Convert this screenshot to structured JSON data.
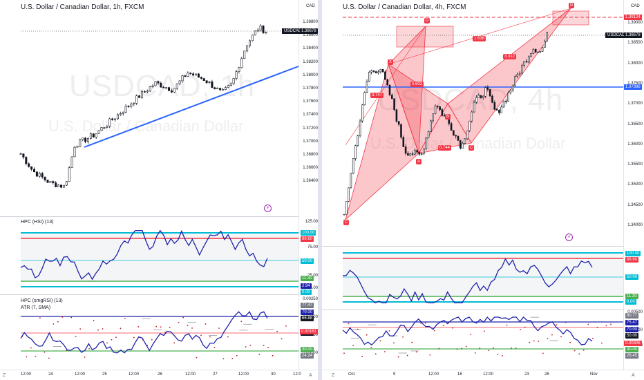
{
  "colors": {
    "up": "#131722",
    "down": "#131722",
    "trendline": "#2962ff",
    "indicator": "#1e22aa",
    "harmonic": "#f23645",
    "level_blue": "#00bcd4",
    "level_red": "#f23645",
    "level_green": "#4caf50"
  },
  "left": {
    "title": "U.S. Dollar / Canadian Dollar, 1h, FXCM",
    "watermark_symbol": "USDCAD, 1h",
    "watermark_name": "U.S. Dollar / Canadian Dollar",
    "currency": "CAD",
    "ticker": "USDCAD",
    "last_price": "1.38678",
    "price_ticks": [
      "1.38800",
      "1.38600",
      "1.38400",
      "1.38200",
      "1.38000",
      "1.37800",
      "1.37600",
      "1.37400",
      "1.37200",
      "1.37000",
      "1.36800",
      "1.36600",
      "1.36400"
    ],
    "indicator1_title": "HPC (HSI) (13)",
    "ind1_ticks": [
      "125.00",
      "75.00",
      "25.00",
      "-25.00"
    ],
    "ind1_labels": [
      "100.00",
      "88.60",
      "50.00",
      "11.30",
      "2.94",
      "0.00"
    ],
    "indicator2_title": "HPC (smgRSI) (13)",
    "indicator3_title": "ATR (7, SMA)",
    "ind2_ticks": [
      "0.00250",
      "0.00200",
      "0.00150",
      "0.00100"
    ],
    "ind2_labels": [
      "77.47",
      "70.00",
      "66.88",
      "50.00",
      "30.00",
      "24.24"
    ],
    "atr_value": "0.00161",
    "time_labels": [
      "12:00",
      "24",
      "12:00",
      "25",
      "12:00",
      "26",
      "12:00",
      "27",
      "12:00",
      "30",
      "12:0"
    ],
    "corner_left": "Z",
    "corner_right": "A"
  },
  "right": {
    "title": "U.S. Dollar / Canadian Dollar, 4h, FXCM",
    "watermark_symbol": "USDCAD, 4h",
    "watermark_name": "U.S. Dollar / Canadian Dollar",
    "currency": "CAD",
    "ticker": "USDCAD",
    "last_price": "1.38678",
    "top_level": "1.39124",
    "blue_level": "1.37386",
    "price_ticks": [
      "1.39000",
      "1.38500",
      "1.38000",
      "1.37500",
      "1.37000",
      "1.36500",
      "1.36000",
      "1.35500",
      "1.35000",
      "1.34500",
      "1.34000"
    ],
    "pattern_labels": [
      "X",
      "A",
      "B",
      "C",
      "D",
      "C",
      "D"
    ],
    "ratios": [
      "3.747",
      "0.602",
      "0.744",
      "1.638",
      "3.312"
    ],
    "ind1_labels": [
      "100.00",
      "88.60",
      "50.00",
      "11.30",
      "0.00"
    ],
    "ind2_ticks": [
      "0.00500",
      "0.00400",
      "0.00300"
    ],
    "ind2_labels": [
      "80.77",
      "75.47",
      "70.00",
      "50.00",
      "30.00",
      "26.45"
    ],
    "atr_value": "0.00306",
    "time_labels": [
      "Oct",
      "9",
      "12:00",
      "16",
      "12:00",
      "23",
      "26",
      "Nov"
    ],
    "corner_left": "Z",
    "corner_right": "A"
  }
}
